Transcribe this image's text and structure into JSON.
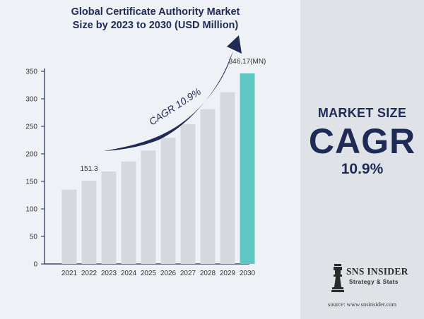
{
  "chart_data": {
    "type": "bar",
    "title": "Global Certificate Authority Market Size by 2023 to 2030 (USD Million)",
    "title_lines": [
      "Global Certificate Authority Market",
      "Size by 2023 to 2030 (USD Million)"
    ],
    "categories": [
      "2021",
      "2022",
      "2023",
      "2024",
      "2025",
      "2026",
      "2027",
      "2028",
      "2029",
      "2030"
    ],
    "values": [
      135,
      151.3,
      168,
      186,
      206,
      229,
      254,
      281,
      312,
      346.17
    ],
    "ylim": [
      0,
      350
    ],
    "yticks": [
      0,
      50,
      100,
      150,
      200,
      250,
      300,
      350
    ],
    "data_labels": [
      {
        "category": "2022",
        "text": "151.3"
      },
      {
        "category": "2030",
        "text": "346.17(MN)"
      }
    ],
    "annotation": "CAGR 10.9%",
    "grid": false,
    "colors": {
      "bar": "#d5d9dd",
      "highlight_bar": "#5ec8c4",
      "arrow": "#1f2a55",
      "axis": "#1f2a55",
      "text": "#333333"
    }
  },
  "market_size": {
    "heading": "MARKET SIZE",
    "cagr_label": "CAGR",
    "cagr_value": "10.9%"
  },
  "logo": {
    "name": "SNS INSIDER",
    "tagline": "Strategy & Stats"
  },
  "source": "source: www.snsinsider.com"
}
